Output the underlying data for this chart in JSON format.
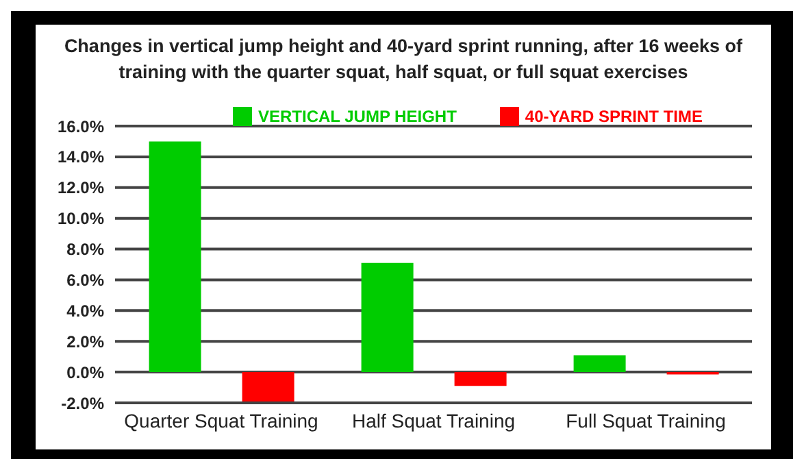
{
  "chart_data": {
    "type": "bar",
    "title": "Changes in vertical jump height and 40-yard sprint running, after 16 weeks of training with the quarter squat, half squat, or full squat exercises",
    "categories": [
      "Quarter Squat Training",
      "Half Squat Training",
      "Full Squat Training"
    ],
    "series": [
      {
        "name": "VERTICAL JUMP HEIGHT",
        "color": "#00cc00",
        "values": [
          15.0,
          7.1,
          1.1
        ]
      },
      {
        "name": "40-YARD SPRINT TIME",
        "color": "#ff0000",
        "values": [
          -2.0,
          -0.9,
          -0.15
        ]
      }
    ],
    "ylim": [
      -2,
      16
    ],
    "yticks": [
      {
        "value": -2,
        "label": "-2.0%"
      },
      {
        "value": 0,
        "label": "0.0%"
      },
      {
        "value": 2,
        "label": "2.0%"
      },
      {
        "value": 4,
        "label": "4.0%"
      },
      {
        "value": 6,
        "label": "6.0%"
      },
      {
        "value": 8,
        "label": "8.0%"
      },
      {
        "value": 10,
        "label": "10.0%"
      },
      {
        "value": 12,
        "label": "12.0%"
      },
      {
        "value": 14,
        "label": "14.0%"
      },
      {
        "value": 16,
        "label": "16.0%"
      }
    ],
    "grid": "y",
    "legend": "top right"
  }
}
